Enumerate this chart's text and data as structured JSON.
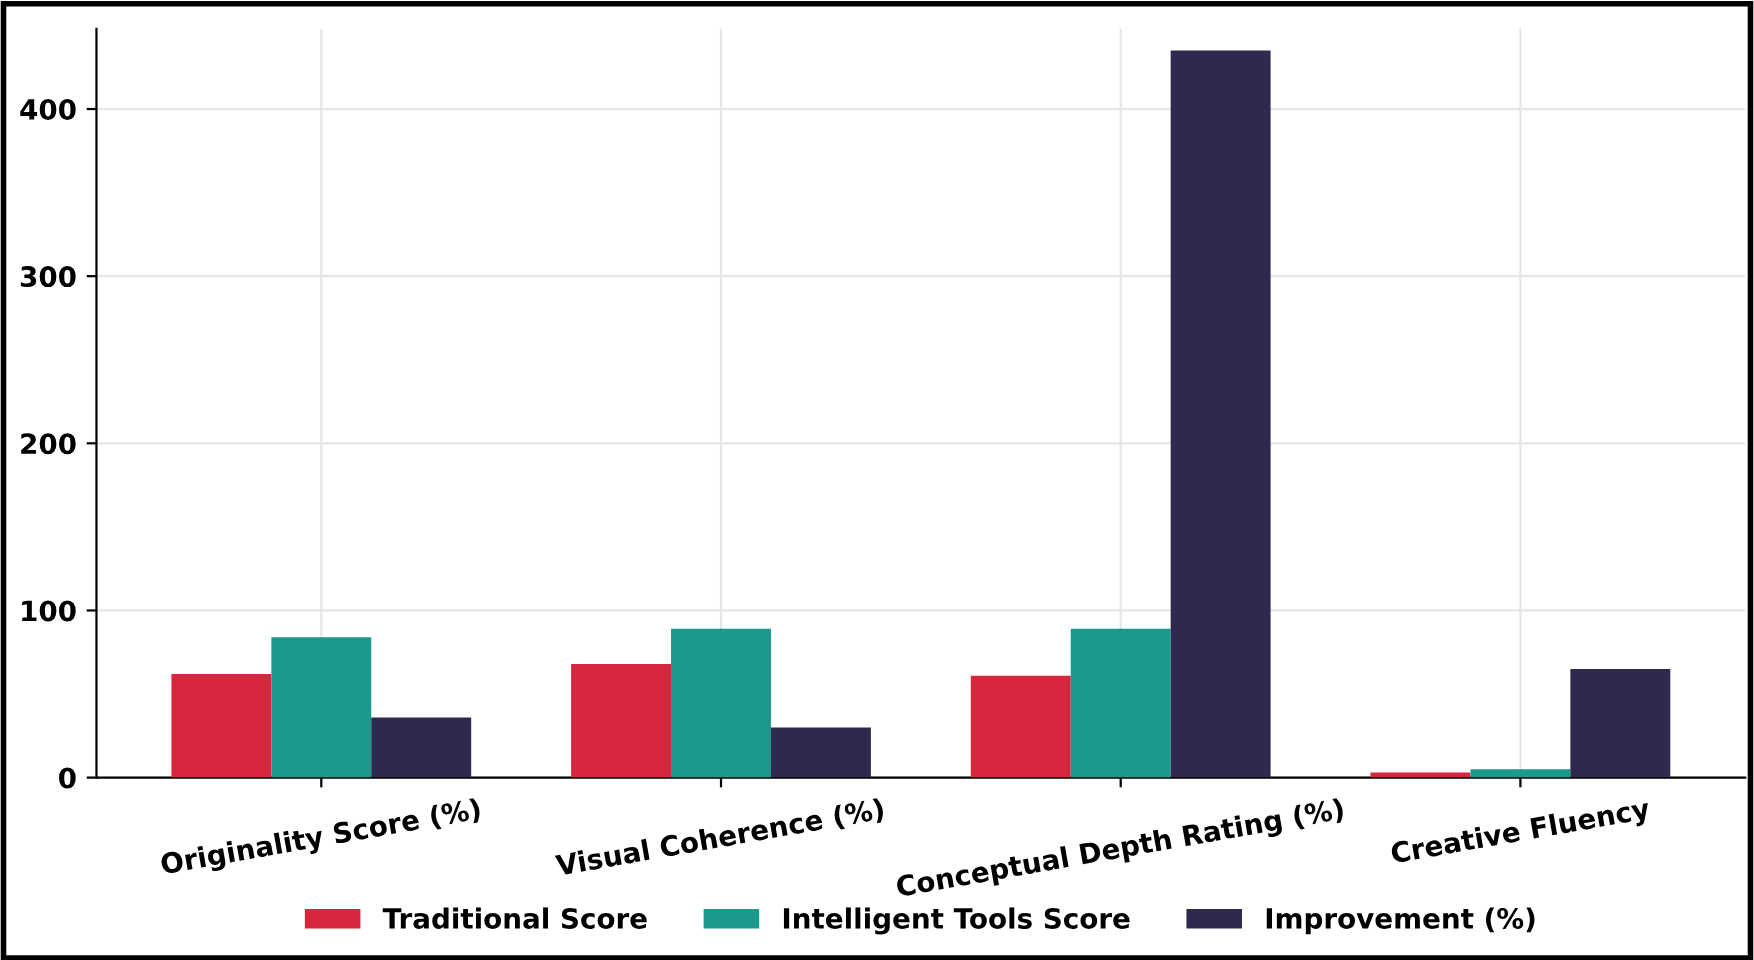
{
  "chart_data": {
    "type": "bar",
    "categories": [
      "Originality Score (%)",
      "Visual Coherence (%)",
      "Conceptual Depth Rating (%)",
      "Creative Fluency"
    ],
    "series": [
      {
        "name": "Traditional Score",
        "color": "#d7263d",
        "values": [
          62,
          68,
          61,
          3
        ]
      },
      {
        "name": "Intelligent Tools Score",
        "color": "#1b998b",
        "values": [
          84,
          89,
          89,
          5
        ]
      },
      {
        "name": "Improvement (%)",
        "color": "#2e294e",
        "values": [
          36,
          30,
          435,
          65
        ]
      }
    ],
    "ylim": [
      0,
      448
    ],
    "yticks": [
      0,
      100,
      200,
      300,
      400
    ],
    "grid": true,
    "legend": "bottom"
  }
}
